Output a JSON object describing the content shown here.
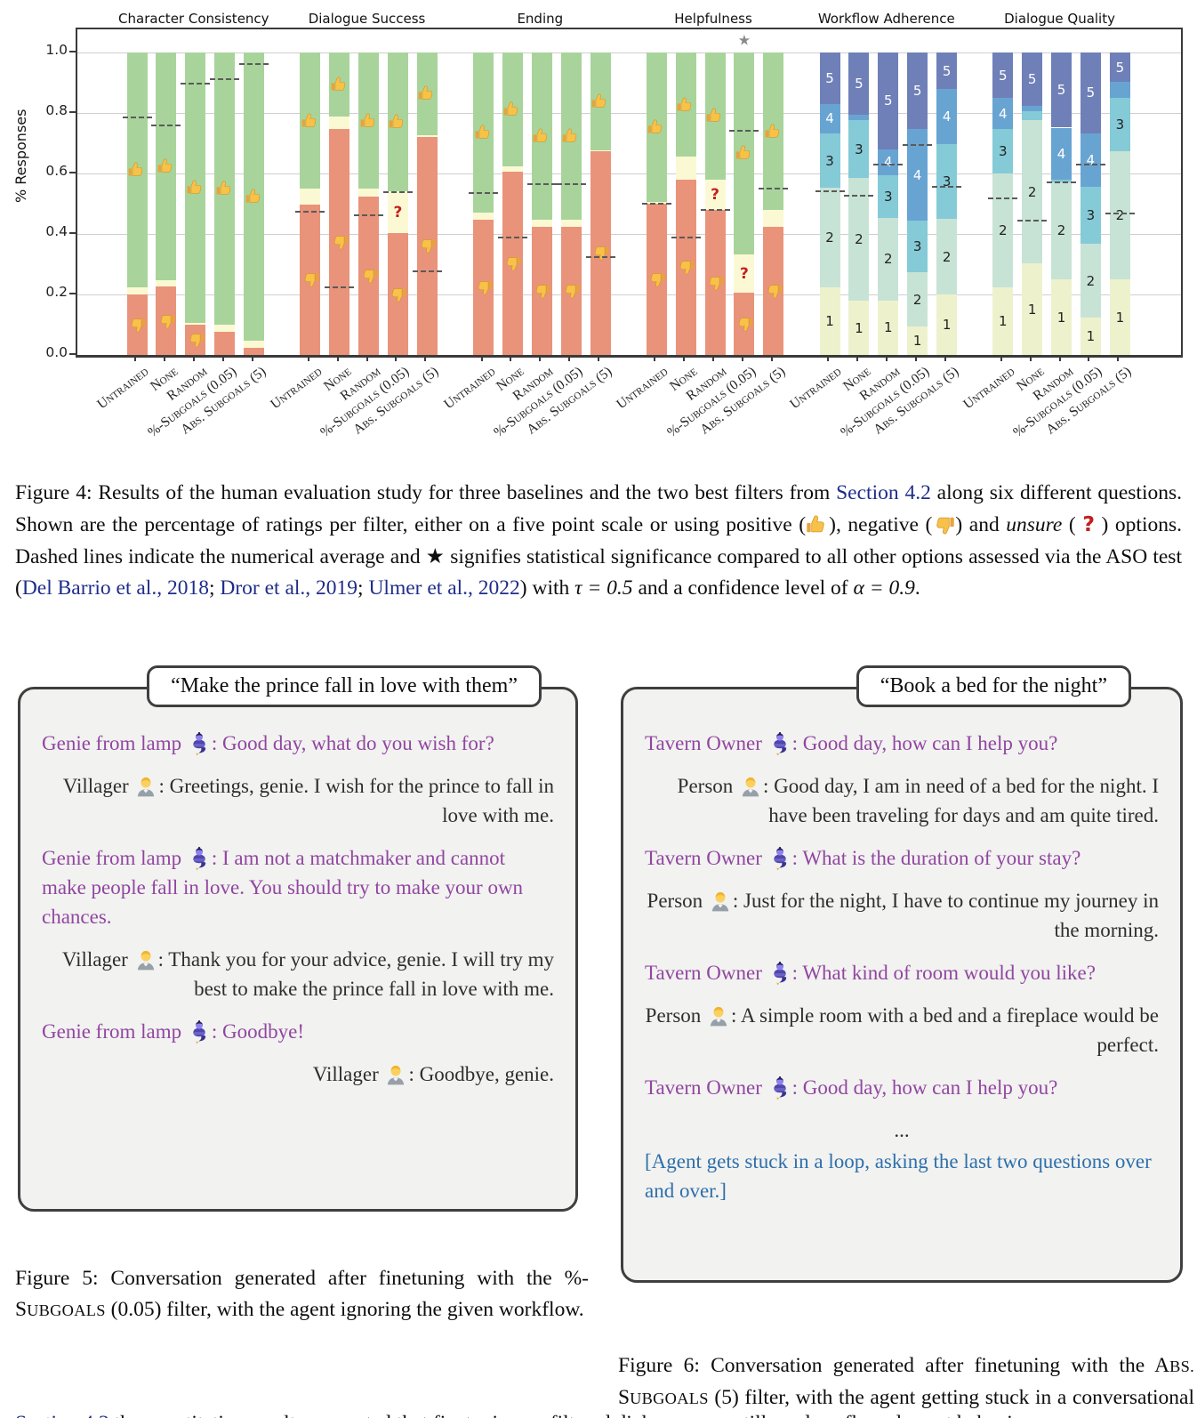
{
  "figure4": {
    "ylabel": "% Responses",
    "yticks": [
      "1.0",
      "0.8",
      "0.6",
      "0.4",
      "0.2",
      "0.0"
    ],
    "scale_labels": [
      "1",
      "2",
      "3",
      "4",
      "5"
    ],
    "categories": [
      "Untrained",
      "None",
      "Random",
      "%-Subgoals (0.05)",
      "Abs. Subgoals (5)"
    ],
    "colors": {
      "positive": "#a8d49b",
      "negative": "#e9937a",
      "unsure": "#fbf9d3",
      "scale": [
        "#edf2cd",
        "#c7e3d6",
        "#85cad7",
        "#68a4d2",
        "#6f80b8"
      ],
      "mean_dash": "#5a5a5a",
      "grid": "#cfcfcf",
      "star": "#8a8a8a",
      "question": "#c41f1f"
    },
    "panels": [
      {
        "title": "Character Consistency",
        "type": "thumbs",
        "bars": [
          {
            "neg": 0.2,
            "uns": 0.022,
            "mean": 0.786
          },
          {
            "neg": 0.225,
            "uns": 0.021,
            "mean": 0.759
          },
          {
            "neg": 0.1,
            "uns": 0.005,
            "mean": 0.897
          },
          {
            "neg": 0.075,
            "uns": 0.025,
            "mean": 0.91
          },
          {
            "neg": 0.023,
            "uns": 0.023,
            "mean": 0.96
          }
        ]
      },
      {
        "title": "Dialogue Success",
        "type": "thumbs",
        "bars": [
          {
            "neg": 0.497,
            "uns": 0.052,
            "mean": 0.473
          },
          {
            "neg": 0.747,
            "uns": 0.041,
            "mean": 0.222
          },
          {
            "neg": 0.522,
            "uns": 0.027,
            "mean": 0.461
          },
          {
            "neg": 0.402,
            "uns": 0.139,
            "mean": 0.539,
            "question": true
          },
          {
            "neg": 0.72,
            "uns": 0.006,
            "mean": 0.275
          }
        ]
      },
      {
        "title": "Ending",
        "type": "thumbs",
        "bars": [
          {
            "neg": 0.446,
            "uns": 0.025,
            "mean": 0.536
          },
          {
            "neg": 0.604,
            "uns": 0.02,
            "mean": 0.388
          },
          {
            "neg": 0.424,
            "uns": 0.022,
            "mean": 0.563
          },
          {
            "neg": 0.424,
            "uns": 0.022,
            "mean": 0.563
          },
          {
            "neg": 0.673,
            "uns": 0.004,
            "mean": 0.324
          }
        ]
      },
      {
        "title": "Helpfulness",
        "type": "thumbs",
        "bars": [
          {
            "neg": 0.5,
            "uns": 0.004,
            "mean": 0.5
          },
          {
            "neg": 0.58,
            "uns": 0.074,
            "mean": 0.387
          },
          {
            "neg": 0.478,
            "uns": 0.102,
            "mean": 0.478,
            "question": true
          },
          {
            "neg": 0.205,
            "uns": 0.127,
            "mean": 0.74,
            "question": true,
            "star": true
          },
          {
            "neg": 0.424,
            "uns": 0.054,
            "mean": 0.55
          }
        ]
      },
      {
        "title": "Workflow Adherence",
        "type": "scale",
        "bars": [
          {
            "cum": [
              0.222,
              0.553,
              0.731,
              0.83
            ],
            "mean": 0.54
          },
          {
            "cum": [
              0.178,
              0.585,
              0.775,
              0.795
            ],
            "mean": 0.527
          },
          {
            "cum": [
              0.18,
              0.453,
              0.595,
              0.68
            ],
            "mean": 0.63
          },
          {
            "cum": [
              0.093,
              0.273,
              0.444,
              0.746
            ],
            "mean": 0.693
          },
          {
            "cum": [
              0.2,
              0.449,
              0.698,
              0.878
            ],
            "mean": 0.556
          }
        ]
      },
      {
        "title": "Dialogue Quality",
        "type": "scale",
        "bars": [
          {
            "cum": [
              0.224,
              0.6,
              0.746,
              0.849
            ],
            "mean": 0.517
          },
          {
            "cum": [
              0.302,
              0.776,
              0.805,
              0.822
            ],
            "mean": 0.444
          },
          {
            "cum": [
              0.249,
              0.571,
              0.578,
              0.751
            ],
            "mean": 0.571
          },
          {
            "cum": [
              0.122,
              0.366,
              0.556,
              0.732
            ],
            "mean": 0.63
          },
          {
            "cum": [
              0.249,
              0.673,
              0.849,
              0.902
            ],
            "mean": 0.468
          }
        ]
      }
    ]
  },
  "figure4_caption": {
    "runs": [
      {
        "t": "Figure 4: Results of the human evaluation study for three baselines and the two best filters from "
      },
      {
        "t": "Section 4.2",
        "s": "link"
      },
      {
        "t": " along six different questions. Shown are the percentage of ratings per filter, either on a five point scale or using positive ("
      },
      {
        "s": "thumb-up"
      },
      {
        "t": "), negative ("
      },
      {
        "s": "thumb-down"
      },
      {
        "t": ") and "
      },
      {
        "t": "unsure",
        "s": "italic"
      },
      {
        "t": " ( "
      },
      {
        "t": "?",
        "s": "qmark"
      },
      {
        "t": " ) options. Dashed lines indicate the numerical average and "
      },
      {
        "t": "★",
        "s": "star"
      },
      {
        "t": " signifies statistical significance compared to all other options assessed via the ASO test ("
      },
      {
        "t": "Del Barrio et al., 2018",
        "s": "link"
      },
      {
        "t": "; "
      },
      {
        "t": "Dror et al., 2019",
        "s": "link"
      },
      {
        "t": "; "
      },
      {
        "t": "Ulmer et al., 2022",
        "s": "link"
      },
      {
        "t": ") with "
      },
      {
        "t": "τ = 0.5",
        "s": "math"
      },
      {
        "t": " and a confidence level of "
      },
      {
        "t": "α = 0.9",
        "s": "math"
      },
      {
        "t": "."
      }
    ]
  },
  "figure5": {
    "title": "“Make the prince fall in love with them”",
    "messages": [
      {
        "speaker": "Genie from lamp",
        "icon": "genie",
        "side": "agent",
        "text": "Good day, what do you wish for?"
      },
      {
        "speaker": "Villager",
        "icon": "person",
        "side": "person",
        "text": "Greetings, genie. I wish for the prince to fall in love with me."
      },
      {
        "speaker": "Genie from lamp",
        "icon": "genie",
        "side": "agent",
        "text": "I am not a matchmaker and cannot make people fall in love. You should try to make your own chances."
      },
      {
        "speaker": "Villager",
        "icon": "person",
        "side": "person",
        "text": "Thank you for your advice, genie. I will try my best to make the prince fall in love with me."
      },
      {
        "speaker": "Genie from lamp",
        "icon": "genie",
        "side": "agent",
        "text": "Goodbye!"
      },
      {
        "speaker": "Villager",
        "icon": "person",
        "side": "person",
        "text": "Goodbye, genie."
      }
    ]
  },
  "figure5_caption": {
    "runs": [
      {
        "t": "Figure 5: Conversation generated after finetuning with the %-S"
      },
      {
        "t": "UBGOALS",
        "s": "sc"
      },
      {
        "t": " (0.05) filter, with the agent ignoring the given workflow."
      }
    ]
  },
  "figure6": {
    "title": "“Book a bed for the night”",
    "messages": [
      {
        "speaker": "Tavern Owner",
        "icon": "genie",
        "side": "agent",
        "text": "Good day, how can I help you?"
      },
      {
        "speaker": "Person",
        "icon": "person",
        "side": "person",
        "text": "Good day, I am in need of a bed for the night. I have been traveling for days and am quite tired."
      },
      {
        "speaker": "Tavern Owner",
        "icon": "genie",
        "side": "agent",
        "text": "What is the duration of your stay?"
      },
      {
        "speaker": "Person",
        "icon": "person",
        "side": "person",
        "text": "Just for the night, I have to continue my journey in the morning."
      },
      {
        "speaker": "Tavern Owner",
        "icon": "genie",
        "side": "agent",
        "text": "What kind of room would you like?"
      },
      {
        "speaker": "Person",
        "icon": "person",
        "side": "person",
        "text": "A simple room with a bed and a fireplace would be perfect."
      },
      {
        "speaker": "Tavern Owner",
        "icon": "genie",
        "side": "agent",
        "text": "Good day, how can I help you?"
      },
      {
        "side": "dots",
        "text": "..."
      },
      {
        "side": "note",
        "text": "[Agent gets stuck in a loop, asking the last two questions over and over.]"
      }
    ]
  },
  "figure6_caption": {
    "runs": [
      {
        "t": "Figure 6: Conversation generated after finetuning with the A"
      },
      {
        "t": "BS.",
        "s": "sc"
      },
      {
        "t": " S"
      },
      {
        "t": "UBGOALS",
        "s": "sc"
      },
      {
        "t": " (5) filter, with the agent getting stuck in a conversational loop."
      }
    ]
  },
  "footer_fragment": {
    "runs": [
      {
        "t": "Section 4.2",
        "s": "link"
      },
      {
        "t": " the quantitative results suggested that finetuning on filtered dialogues can still produce flawed agent behavior."
      }
    ]
  }
}
